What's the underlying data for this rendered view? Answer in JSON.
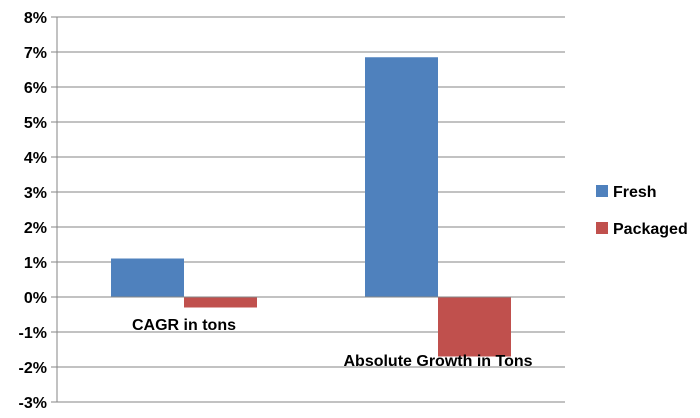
{
  "chart_data": {
    "type": "bar",
    "categories": [
      "CAGR in tons",
      "Absolute Growth in Tons"
    ],
    "series": [
      {
        "name": "Fresh",
        "values": [
          1.1,
          6.85
        ],
        "color": "#4F81BD"
      },
      {
        "name": "Packaged",
        "values": [
          -0.3,
          -1.7
        ],
        "color": "#C0504D"
      }
    ],
    "ylim": [
      -3,
      8
    ],
    "y_ticks": [
      -3,
      -2,
      -1,
      0,
      1,
      2,
      3,
      4,
      5,
      6,
      7,
      8
    ],
    "y_tick_format": "percent",
    "grid": true,
    "legend": {
      "position": "right"
    },
    "title": "",
    "xlabel": "",
    "ylabel": ""
  }
}
